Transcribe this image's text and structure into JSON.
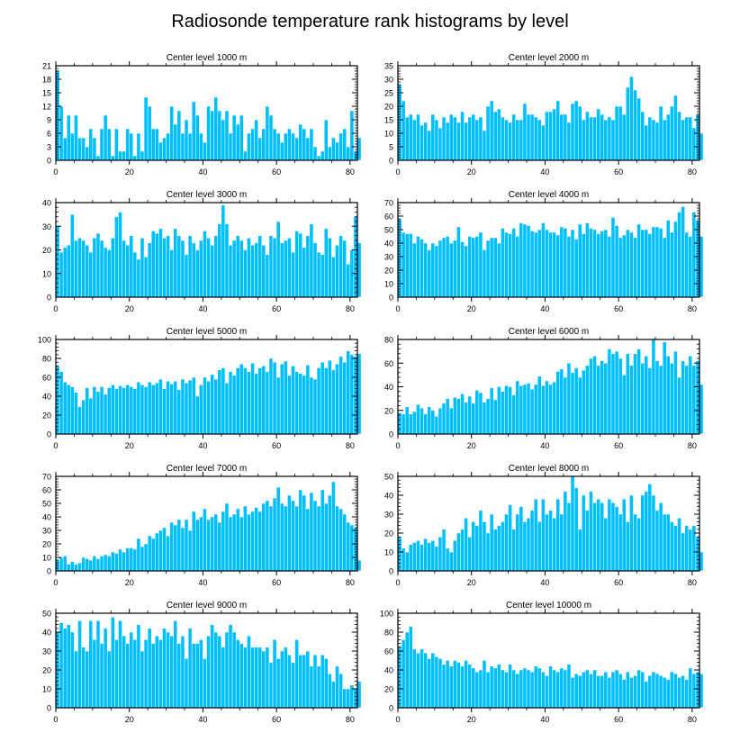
{
  "figure": {
    "title": "Radiosonde temperature rank histograms by level"
  },
  "style": {
    "bar_color": "#00BFFF",
    "bar_edge": "#FFFFFF",
    "axis_color": "#000000"
  },
  "chart_data": [
    {
      "type": "bar",
      "title": "Center level 1000 m",
      "x_start": 0,
      "xlim": [
        0,
        82
      ],
      "xticks": [
        0,
        20,
        40,
        60,
        80
      ],
      "ylim": [
        0,
        21
      ],
      "yticks": [
        0,
        3,
        6,
        9,
        12,
        15,
        18,
        21
      ],
      "values": [
        20,
        12,
        5,
        10,
        6,
        10,
        5,
        5,
        3,
        7,
        5,
        1,
        7,
        10,
        7,
        1,
        7,
        2,
        2,
        7,
        6,
        1,
        6,
        2,
        14,
        12,
        7,
        7,
        4,
        5,
        6,
        12,
        8,
        11,
        6,
        9,
        6,
        13,
        10,
        6,
        4,
        12,
        11,
        14,
        11,
        9,
        11,
        6,
        10,
        8,
        10,
        2,
        6,
        7,
        9,
        5,
        7,
        12,
        10,
        7,
        6,
        4,
        6,
        7,
        6,
        5,
        8,
        7,
        5,
        7,
        3,
        1,
        2,
        9,
        3,
        5,
        4,
        6,
        7,
        3,
        11,
        2,
        5
      ],
      "xlabel": "",
      "ylabel": ""
    },
    {
      "type": "bar",
      "title": "Center level 2000 m",
      "x_start": 0,
      "xlim": [
        0,
        82
      ],
      "xticks": [
        0,
        20,
        40,
        60,
        80
      ],
      "ylim": [
        0,
        35
      ],
      "yticks": [
        0,
        5,
        10,
        15,
        20,
        25,
        30,
        35
      ],
      "values": [
        28,
        22,
        16,
        17,
        15,
        17,
        13,
        14,
        11,
        17,
        15,
        12,
        16,
        14,
        17,
        16,
        14,
        18,
        14,
        16,
        17,
        15,
        16,
        11,
        20,
        22,
        18,
        19,
        16,
        15,
        14,
        17,
        15,
        15,
        21,
        17,
        17,
        16,
        15,
        13,
        18,
        18,
        19,
        22,
        17,
        17,
        14,
        21,
        22,
        20,
        15,
        18,
        16,
        16,
        19,
        17,
        15,
        16,
        15,
        20,
        20,
        17,
        27,
        31,
        26,
        23,
        18,
        13,
        16,
        15,
        14,
        20,
        15,
        17,
        20,
        24,
        18,
        15,
        16,
        16,
        12,
        17,
        10
      ],
      "xlabel": "",
      "ylabel": ""
    },
    {
      "type": "bar",
      "title": "Center level 3000 m",
      "x_start": 0,
      "xlim": [
        0,
        82
      ],
      "xticks": [
        0,
        20,
        40,
        60,
        80
      ],
      "ylim": [
        0,
        40
      ],
      "yticks": [
        0,
        10,
        20,
        30,
        40
      ],
      "values": [
        30,
        19,
        21,
        22,
        35,
        24,
        25,
        24,
        22,
        19,
        25,
        27,
        24,
        21,
        20,
        25,
        34,
        36,
        24,
        22,
        26,
        19,
        16,
        25,
        17,
        23,
        28,
        27,
        29,
        25,
        26,
        20,
        29,
        26,
        24,
        18,
        26,
        23,
        20,
        24,
        28,
        25,
        22,
        26,
        31,
        39,
        31,
        22,
        24,
        26,
        24,
        20,
        25,
        22,
        23,
        26,
        22,
        18,
        26,
        25,
        32,
        23,
        24,
        25,
        19,
        28,
        27,
        21,
        26,
        31,
        23,
        19,
        18,
        29,
        25,
        17,
        22,
        26,
        24,
        14,
        20,
        34,
        23
      ],
      "xlabel": "",
      "ylabel": ""
    },
    {
      "type": "bar",
      "title": "Center level 4000 m",
      "x_start": 0,
      "xlim": [
        0,
        82
      ],
      "xticks": [
        0,
        20,
        40,
        60,
        80
      ],
      "ylim": [
        0,
        70
      ],
      "yticks": [
        0,
        10,
        20,
        30,
        40,
        50,
        60,
        70
      ],
      "values": [
        58,
        48,
        47,
        47,
        40,
        45,
        43,
        40,
        35,
        40,
        38,
        42,
        44,
        45,
        40,
        42,
        52,
        41,
        38,
        45,
        44,
        45,
        48,
        35,
        42,
        44,
        44,
        40,
        51,
        48,
        47,
        51,
        45,
        55,
        54,
        53,
        49,
        48,
        50,
        55,
        50,
        48,
        48,
        46,
        52,
        51,
        45,
        50,
        43,
        54,
        47,
        55,
        51,
        50,
        47,
        49,
        50,
        45,
        59,
        53,
        44,
        46,
        50,
        48,
        44,
        54,
        50,
        50,
        47,
        52,
        52,
        51,
        44,
        57,
        48,
        56,
        63,
        67,
        48,
        45,
        63,
        57,
        45
      ],
      "xlabel": "",
      "ylabel": ""
    },
    {
      "type": "bar",
      "title": "Center level 5000 m",
      "x_start": 0,
      "xlim": [
        0,
        82
      ],
      "xticks": [
        0,
        20,
        40,
        60,
        80
      ],
      "ylim": [
        0,
        100
      ],
      "yticks": [
        0,
        20,
        40,
        60,
        80,
        100
      ],
      "values": [
        72,
        66,
        55,
        52,
        50,
        44,
        29,
        36,
        49,
        38,
        50,
        45,
        50,
        42,
        49,
        52,
        48,
        51,
        49,
        52,
        50,
        48,
        55,
        52,
        50,
        55,
        52,
        54,
        58,
        48,
        56,
        53,
        56,
        47,
        58,
        54,
        57,
        60,
        40,
        52,
        60,
        56,
        63,
        58,
        68,
        70,
        54,
        66,
        62,
        70,
        74,
        70,
        66,
        75,
        64,
        70,
        72,
        66,
        80,
        76,
        60,
        74,
        77,
        62,
        72,
        66,
        64,
        62,
        73,
        60,
        58,
        70,
        76,
        70,
        78,
        68,
        74,
        82,
        76,
        88,
        84,
        82,
        85
      ],
      "xlabel": "",
      "ylabel": ""
    },
    {
      "type": "bar",
      "title": "Center level 6000 m",
      "x_start": 0,
      "xlim": [
        0,
        82
      ],
      "xticks": [
        0,
        20,
        40,
        60,
        80
      ],
      "ylim": [
        0,
        80
      ],
      "yticks": [
        0,
        20,
        40,
        60,
        80
      ],
      "values": [
        18,
        17,
        23,
        17,
        19,
        25,
        22,
        17,
        23,
        20,
        15,
        22,
        26,
        30,
        22,
        31,
        30,
        34,
        27,
        32,
        26,
        37,
        35,
        27,
        30,
        39,
        29,
        40,
        36,
        41,
        40,
        33,
        45,
        41,
        42,
        43,
        38,
        42,
        49,
        41,
        45,
        42,
        44,
        53,
        55,
        48,
        60,
        52,
        56,
        48,
        54,
        58,
        64,
        66,
        58,
        62,
        60,
        72,
        68,
        70,
        64,
        50,
        68,
        58,
        68,
        72,
        60,
        66,
        56,
        80,
        62,
        58,
        78,
        66,
        60,
        70,
        48,
        62,
        58,
        66,
        58,
        62,
        42
      ],
      "xlabel": "",
      "ylabel": ""
    },
    {
      "type": "bar",
      "title": "Center level 7000 m",
      "x_start": 0,
      "xlim": [
        0,
        82
      ],
      "xticks": [
        0,
        20,
        40,
        60,
        80
      ],
      "ylim": [
        0,
        70
      ],
      "yticks": [
        0,
        10,
        20,
        30,
        40,
        50,
        60,
        70
      ],
      "values": [
        8,
        10,
        11,
        5,
        7,
        5,
        6,
        10,
        9,
        8,
        11,
        9,
        11,
        12,
        11,
        14,
        13,
        16,
        14,
        17,
        17,
        16,
        24,
        18,
        20,
        26,
        24,
        28,
        30,
        32,
        26,
        36,
        34,
        38,
        32,
        38,
        30,
        44,
        38,
        40,
        46,
        38,
        40,
        42,
        36,
        44,
        50,
        40,
        42,
        46,
        40,
        48,
        42,
        44,
        47,
        44,
        50,
        52,
        48,
        54,
        62,
        50,
        48,
        56,
        52,
        48,
        60,
        56,
        46,
        58,
        52,
        48,
        60,
        50,
        56,
        66,
        48,
        46,
        42,
        36,
        34,
        32,
        8
      ],
      "xlabel": "",
      "ylabel": ""
    },
    {
      "type": "bar",
      "title": "Center level 8000 m",
      "x_start": 0,
      "xlim": [
        0,
        82
      ],
      "xticks": [
        0,
        20,
        40,
        60,
        80
      ],
      "ylim": [
        0,
        50
      ],
      "yticks": [
        0,
        10,
        20,
        30,
        40,
        50
      ],
      "values": [
        18,
        12,
        10,
        14,
        15,
        16,
        14,
        17,
        15,
        16,
        13,
        18,
        22,
        12,
        10,
        16,
        20,
        22,
        28,
        18,
        26,
        24,
        32,
        26,
        20,
        30,
        22,
        24,
        26,
        30,
        35,
        22,
        30,
        34,
        26,
        28,
        32,
        38,
        26,
        38,
        30,
        32,
        28,
        38,
        30,
        42,
        36,
        52,
        44,
        22,
        40,
        32,
        42,
        36,
        38,
        36,
        28,
        38,
        36,
        34,
        30,
        38,
        26,
        40,
        30,
        28,
        40,
        42,
        46,
        40,
        32,
        36,
        30,
        30,
        26,
        24,
        28,
        20,
        24,
        22,
        24,
        18,
        10
      ],
      "xlabel": "",
      "ylabel": ""
    },
    {
      "type": "bar",
      "title": "Center level 9000 m",
      "x_start": 0,
      "xlim": [
        0,
        82
      ],
      "xticks": [
        0,
        20,
        40,
        60,
        80
      ],
      "ylim": [
        0,
        50
      ],
      "yticks": [
        0,
        10,
        20,
        30,
        40,
        50
      ],
      "values": [
        40,
        45,
        42,
        44,
        40,
        30,
        46,
        32,
        30,
        46,
        36,
        46,
        34,
        42,
        30,
        48,
        36,
        46,
        38,
        34,
        40,
        36,
        44,
        30,
        36,
        42,
        34,
        38,
        36,
        42,
        40,
        38,
        46,
        34,
        38,
        26,
        42,
        34,
        34,
        36,
        26,
        38,
        44,
        40,
        38,
        32,
        40,
        44,
        40,
        36,
        34,
        32,
        38,
        32,
        32,
        32,
        30,
        32,
        24,
        36,
        26,
        30,
        32,
        28,
        24,
        36,
        28,
        28,
        30,
        22,
        28,
        22,
        28,
        26,
        18,
        14,
        22,
        18,
        10,
        10,
        12,
        10,
        14
      ],
      "xlabel": "",
      "ylabel": ""
    },
    {
      "type": "bar",
      "title": "Center level 10000 m",
      "x_start": 0,
      "xlim": [
        0,
        82
      ],
      "xticks": [
        0,
        20,
        40,
        60,
        80
      ],
      "ylim": [
        0,
        100
      ],
      "yticks": [
        0,
        20,
        40,
        60,
        80,
        100
      ],
      "values": [
        65,
        72,
        80,
        86,
        62,
        58,
        62,
        58,
        52,
        58,
        54,
        52,
        46,
        50,
        44,
        50,
        48,
        44,
        50,
        46,
        42,
        38,
        40,
        50,
        38,
        44,
        42,
        46,
        40,
        38,
        46,
        40,
        36,
        40,
        42,
        40,
        38,
        44,
        42,
        38,
        34,
        44,
        40,
        38,
        42,
        40,
        46,
        32,
        36,
        34,
        38,
        40,
        36,
        40,
        34,
        34,
        38,
        32,
        38,
        40,
        36,
        30,
        38,
        32,
        34,
        40,
        38,
        28,
        34,
        38,
        36,
        34,
        32,
        30,
        38,
        36,
        32,
        34,
        30,
        42,
        36,
        38,
        36
      ],
      "xlabel": "",
      "ylabel": ""
    }
  ]
}
